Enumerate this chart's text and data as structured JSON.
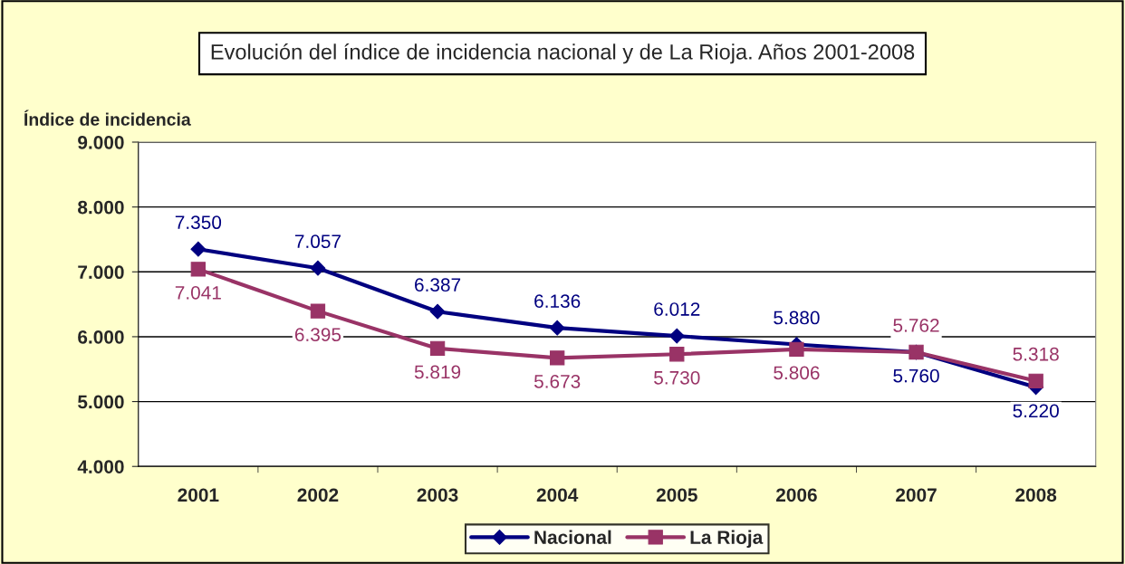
{
  "chart_data": {
    "type": "line",
    "title": "Evolución del índice de incidencia nacional y de La Rioja. Años 2001-2008",
    "ylabel": "Índice de incidencia",
    "categories": [
      "2001",
      "2002",
      "2003",
      "2004",
      "2005",
      "2006",
      "2007",
      "2008"
    ],
    "series": [
      {
        "name": "Nacional",
        "color": "#000080",
        "marker": "diamond",
        "values": [
          7350,
          7057,
          6387,
          6136,
          6012,
          5880,
          5760,
          5220
        ],
        "value_labels": [
          "7.350",
          "7.057",
          "6.387",
          "6.136",
          "6.012",
          "5.880",
          "5.760",
          "5.220"
        ]
      },
      {
        "name": "La Rioja",
        "color": "#993366",
        "marker": "square",
        "values": [
          7041,
          6395,
          5819,
          5673,
          5730,
          5806,
          5762,
          5318
        ],
        "value_labels": [
          "7.041",
          "6.395",
          "5.819",
          "5.673",
          "5.730",
          "5.806",
          "5.762",
          "5.318"
        ]
      }
    ],
    "ylim": [
      4000,
      9000
    ],
    "yticks": [
      {
        "value": 4000,
        "label": "4.000"
      },
      {
        "value": 5000,
        "label": "5.000"
      },
      {
        "value": 6000,
        "label": "6.000"
      },
      {
        "value": 7000,
        "label": "7.000"
      },
      {
        "value": 8000,
        "label": "8.000"
      },
      {
        "value": 9000,
        "label": "9.000"
      }
    ],
    "grid": "y",
    "legend": "bottom"
  }
}
